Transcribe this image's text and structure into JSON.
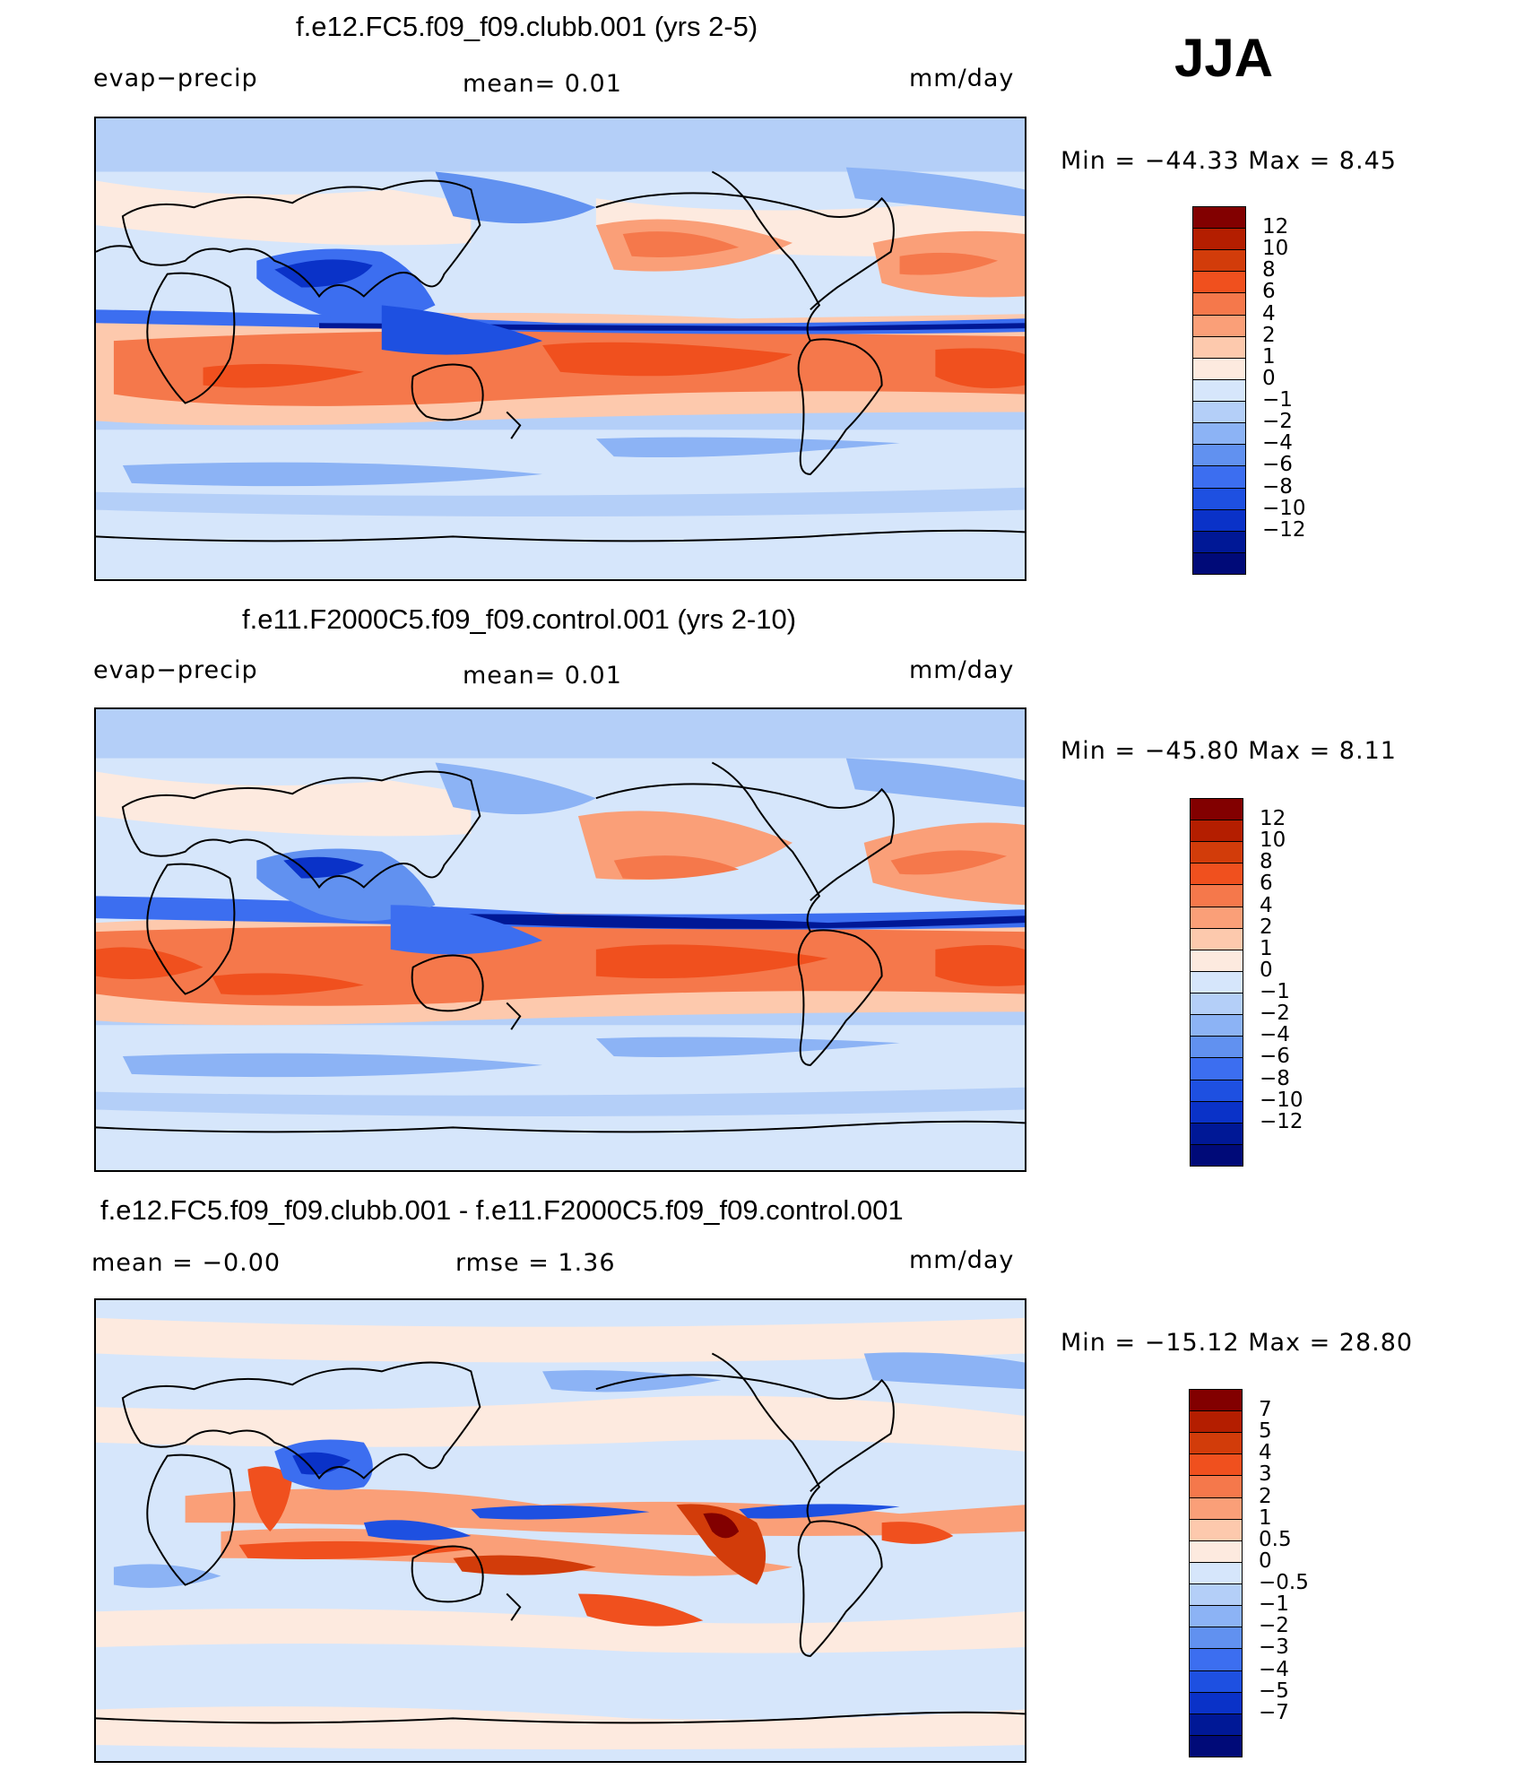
{
  "season": "JJA",
  "panels": [
    {
      "title": "f.e12.FC5.f09_f09.clubb.001 (yrs 2-5)",
      "left_label": "evap−precip",
      "center_label": "mean=     0.01",
      "right_label": "mm/day",
      "minmax": "Min  =  −44.33  Max  =      8.45",
      "colorbar": {
        "colors": [
          "#820000",
          "#b41e00",
          "#d23c0a",
          "#f0501e",
          "#f5784b",
          "#fa9f78",
          "#fdc9ad",
          "#fdeadf",
          "#d6e6fb",
          "#b4cff8",
          "#8cb3f5",
          "#6191f0",
          "#3c6ef0",
          "#1e50e1",
          "#0a32c8",
          "#001896",
          "#000a78"
        ],
        "ticks": [
          "12",
          "10",
          "8",
          "6",
          "4",
          "2",
          "1",
          "0",
          "−1",
          "−2",
          "−4",
          "−6",
          "−8",
          "−10",
          "−12"
        ]
      }
    },
    {
      "title": "f.e11.F2000C5.f09_f09.control.001 (yrs 2-10)",
      "left_label": "evap−precip",
      "center_label": "mean=     0.01",
      "right_label": "mm/day",
      "minmax": "Min  =  −45.80  Max  =      8.11",
      "colorbar": {
        "colors": [
          "#820000",
          "#b41e00",
          "#d23c0a",
          "#f0501e",
          "#f5784b",
          "#fa9f78",
          "#fdc9ad",
          "#fdeadf",
          "#d6e6fb",
          "#b4cff8",
          "#8cb3f5",
          "#6191f0",
          "#3c6ef0",
          "#1e50e1",
          "#0a32c8",
          "#001896",
          "#000a78"
        ],
        "ticks": [
          "12",
          "10",
          "8",
          "6",
          "4",
          "2",
          "1",
          "0",
          "−1",
          "−2",
          "−4",
          "−6",
          "−8",
          "−10",
          "−12"
        ]
      }
    },
    {
      "title": "f.e12.FC5.f09_f09.clubb.001 - f.e11.F2000C5.f09_f09.control.001",
      "left_label": "mean  =    −0.00",
      "center_label": "rmse  =     1.36",
      "right_label": "mm/day",
      "minmax": "Min  =  −15.12  Max  =     28.80",
      "colorbar": {
        "colors": [
          "#820000",
          "#b41e00",
          "#d23c0a",
          "#f0501e",
          "#f5784b",
          "#fa9f78",
          "#fdc9ad",
          "#fdeadf",
          "#d6e6fb",
          "#b4cff8",
          "#8cb3f5",
          "#6191f0",
          "#3c6ef0",
          "#1e50e1",
          "#0a32c8",
          "#001896",
          "#000a78"
        ],
        "ticks": [
          "7",
          "5",
          "4",
          "3",
          "2",
          "1",
          "0.5",
          "0",
          "−0.5",
          "−1",
          "−2",
          "−3",
          "−4",
          "−5",
          "−7"
        ]
      }
    }
  ]
}
